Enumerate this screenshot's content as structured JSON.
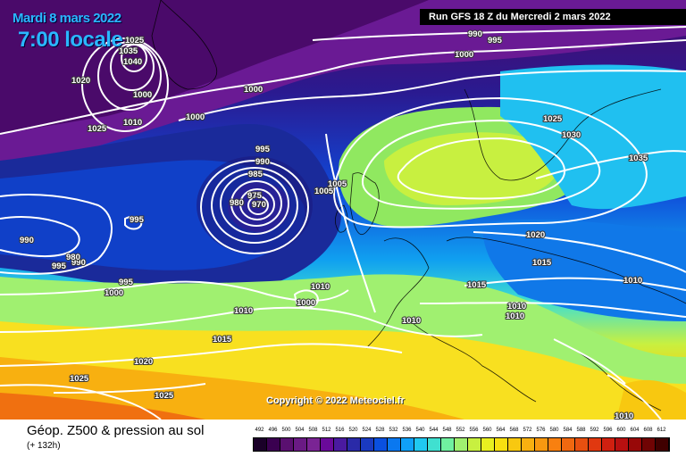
{
  "header": {
    "date": "Mardi 8 mars 2022",
    "time": "7:00 locale",
    "run": "Run GFS 18 Z du Mercredi 2 mars 2022",
    "copyright": "Copyright © 2022 Meteociel.fr"
  },
  "footer": {
    "title": "Géop. Z500 & pression au sol",
    "subtitle": "(+ 132h)"
  },
  "legend": {
    "values": [
      "492",
      "496",
      "500",
      "504",
      "508",
      "512",
      "516",
      "520",
      "524",
      "528",
      "532",
      "536",
      "540",
      "544",
      "548",
      "552",
      "556",
      "560",
      "564",
      "568",
      "572",
      "576",
      "580",
      "584",
      "588",
      "592",
      "596",
      "600",
      "604",
      "608",
      "612"
    ],
    "colors": [
      "#1a0028",
      "#3a0050",
      "#5a1070",
      "#6a1a84",
      "#7a2494",
      "#6a0a9a",
      "#4a1aa0",
      "#2a2aa8",
      "#1a3ac0",
      "#0a50e0",
      "#0a78f0",
      "#10a0f8",
      "#20c8f0",
      "#40e0d0",
      "#70f0a0",
      "#a0f070",
      "#c8f040",
      "#e8f020",
      "#f8e010",
      "#f8c810",
      "#f8b010",
      "#f89810",
      "#f88010",
      "#f06810",
      "#e85010",
      "#e03810",
      "#d02010",
      "#b81010",
      "#980808",
      "#700404",
      "#400000"
    ]
  },
  "map": {
    "colors": {
      "deep_purple": "#4a0a6a",
      "purple": "#7a1a94",
      "dark_blue": "#1a2a9a",
      "blue": "#1048d8",
      "light_blue": "#10a0f0",
      "cyan": "#30d8e0",
      "green": "#a8f060",
      "yellow": "#f8e820",
      "orange": "#f8a010",
      "red_orange": "#f07010"
    },
    "isobar_labels": [
      "1025",
      "1035",
      "1040",
      "1020",
      "1025",
      "1010",
      "1005",
      "1000",
      "1000",
      "990",
      "995",
      "1000",
      "995",
      "990",
      "985",
      "980",
      "975",
      "970",
      "1005",
      "1000",
      "990",
      "995",
      "990",
      "995",
      "980",
      "995",
      "1000",
      "1010",
      "1000",
      "1015",
      "1020",
      "1025",
      "1025",
      "1025",
      "1030",
      "1035",
      "1020",
      "1015",
      "1015",
      "1010",
      "1010",
      "1010",
      "1010",
      "1010",
      "1010"
    ]
  }
}
